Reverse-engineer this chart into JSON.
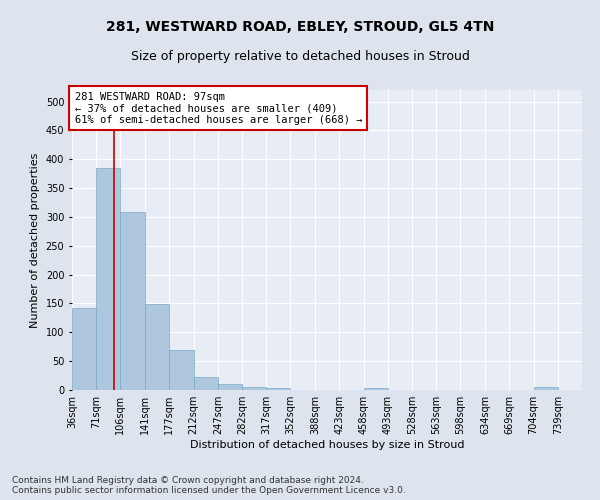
{
  "title": "281, WESTWARD ROAD, EBLEY, STROUD, GL5 4TN",
  "subtitle": "Size of property relative to detached houses in Stroud",
  "xlabel": "Distribution of detached houses by size in Stroud",
  "ylabel": "Number of detached properties",
  "footer_line1": "Contains HM Land Registry data © Crown copyright and database right 2024.",
  "footer_line2": "Contains public sector information licensed under the Open Government Licence v3.0.",
  "bin_labels": [
    "36sqm",
    "71sqm",
    "106sqm",
    "141sqm",
    "177sqm",
    "212sqm",
    "247sqm",
    "282sqm",
    "317sqm",
    "352sqm",
    "388sqm",
    "423sqm",
    "458sqm",
    "493sqm",
    "528sqm",
    "563sqm",
    "598sqm",
    "634sqm",
    "669sqm",
    "704sqm",
    "739sqm"
  ],
  "bin_edges": [
    36,
    71,
    106,
    141,
    177,
    212,
    247,
    282,
    317,
    352,
    388,
    423,
    458,
    493,
    528,
    563,
    598,
    634,
    669,
    704,
    739
  ],
  "bin_width": 35,
  "bar_heights": [
    143,
    385,
    308,
    149,
    70,
    22,
    10,
    6,
    3,
    0,
    0,
    0,
    4,
    0,
    0,
    0,
    0,
    0,
    0,
    5,
    0
  ],
  "bar_color": "#aec6de",
  "bar_edge_color": "#7aaac8",
  "property_size": 97,
  "red_line_color": "#cc0000",
  "annotation_line1": "281 WESTWARD ROAD: 97sqm",
  "annotation_line2": "← 37% of detached houses are smaller (409)",
  "annotation_line3": "61% of semi-detached houses are larger (668) →",
  "annotation_box_color": "#ffffff",
  "annotation_box_edge": "#cc0000",
  "ylim": [
    0,
    520
  ],
  "yticks": [
    0,
    50,
    100,
    150,
    200,
    250,
    300,
    350,
    400,
    450,
    500
  ],
  "bg_color": "#dde4ed",
  "plot_bg_color": "#e8edf5",
  "title_fontsize": 10,
  "subtitle_fontsize": 9,
  "axis_label_fontsize": 8,
  "tick_fontsize": 7,
  "annotation_fontsize": 7.5,
  "footer_fontsize": 6.5
}
